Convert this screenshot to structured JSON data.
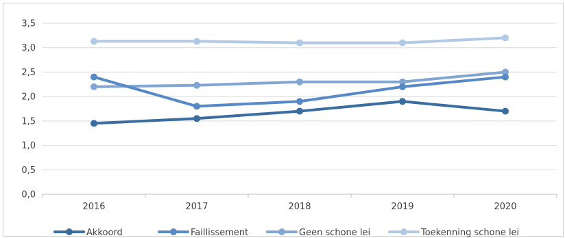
{
  "chart_data": {
    "type": "line",
    "title": "",
    "xlabel": "",
    "ylabel": "",
    "categories": [
      "2016",
      "2017",
      "2018",
      "2019",
      "2020"
    ],
    "ylim": [
      0,
      3.5
    ],
    "y_ticks": [
      "0,0",
      "0,5",
      "1,0",
      "1,5",
      "2,0",
      "2,5",
      "3,0",
      "3,5"
    ],
    "grid": true,
    "legend_position": "bottom",
    "series": [
      {
        "name": "Akkoord",
        "color": "#3b6ea0",
        "values": [
          1.45,
          1.55,
          1.7,
          1.9,
          1.7
        ]
      },
      {
        "name": "Faillissement",
        "color": "#5689c6",
        "values": [
          2.4,
          1.8,
          1.9,
          2.2,
          2.4
        ]
      },
      {
        "name": "Geen schone lei",
        "color": "#82a6d4",
        "values": [
          2.2,
          2.23,
          2.3,
          2.3,
          2.5
        ]
      },
      {
        "name": "Toekenning schone lei",
        "color": "#b2c9e6",
        "values": [
          3.13,
          3.13,
          3.1,
          3.1,
          3.2
        ]
      }
    ]
  }
}
